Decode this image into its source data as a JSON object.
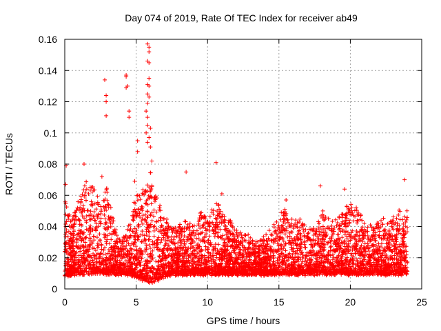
{
  "chart_data": {
    "type": "scatter",
    "title": "Day 074 of 2019, Rate Of TEC Index for receiver ab49",
    "xlabel": "GPS time / hours",
    "ylabel": "ROTI / TECUs",
    "xlim": [
      0,
      25
    ],
    "ylim": [
      0,
      0.16
    ],
    "xticks": [
      0,
      5,
      10,
      15,
      20,
      25
    ],
    "xtick_labels": [
      "0",
      "5",
      "10",
      "15",
      "20",
      "25"
    ],
    "yticks": [
      0,
      0.02,
      0.04,
      0.06,
      0.08,
      0.1,
      0.12,
      0.14,
      0.16
    ],
    "ytick_labels": [
      "0",
      "0.02",
      "0.04",
      "0.06",
      "0.08",
      "0.1",
      "0.12",
      "0.14",
      "0.16"
    ],
    "grid": true,
    "marker": "+",
    "series_color": "#ff0000",
    "envelope": {
      "x": [
        0,
        0.5,
        1,
        1.5,
        2,
        2.5,
        3,
        3.5,
        4,
        4.5,
        5,
        5.5,
        6,
        6.5,
        7,
        7.5,
        8,
        8.5,
        9,
        9.5,
        10,
        10.5,
        11,
        11.5,
        12,
        12.5,
        13,
        13.5,
        14,
        14.5,
        15,
        15.5,
        16,
        16.5,
        17,
        17.5,
        18,
        18.5,
        19,
        19.5,
        20,
        20.5,
        21,
        21.5,
        22,
        22.5,
        23,
        23.5,
        24
      ],
      "upper": [
        0.06,
        0.045,
        0.06,
        0.07,
        0.065,
        0.06,
        0.065,
        0.04,
        0.03,
        0.045,
        0.06,
        0.065,
        0.075,
        0.06,
        0.045,
        0.04,
        0.04,
        0.045,
        0.04,
        0.05,
        0.045,
        0.06,
        0.05,
        0.045,
        0.04,
        0.035,
        0.035,
        0.03,
        0.035,
        0.04,
        0.05,
        0.05,
        0.045,
        0.045,
        0.04,
        0.04,
        0.05,
        0.05,
        0.045,
        0.05,
        0.055,
        0.05,
        0.045,
        0.04,
        0.045,
        0.045,
        0.045,
        0.05,
        0.05
      ],
      "lower": [
        0.008,
        0.01,
        0.01,
        0.01,
        0.01,
        0.01,
        0.01,
        0.01,
        0.01,
        0.01,
        0.008,
        0.006,
        0.005,
        0.006,
        0.008,
        0.01,
        0.01,
        0.01,
        0.01,
        0.01,
        0.01,
        0.01,
        0.01,
        0.01,
        0.01,
        0.01,
        0.01,
        0.01,
        0.01,
        0.01,
        0.01,
        0.01,
        0.01,
        0.01,
        0.01,
        0.01,
        0.01,
        0.01,
        0.01,
        0.01,
        0.01,
        0.01,
        0.01,
        0.01,
        0.01,
        0.01,
        0.01,
        0.01,
        0.01
      ]
    },
    "outliers": [
      {
        "x": 2.8,
        "y": 0.134
      },
      {
        "x": 2.9,
        "y": 0.124
      },
      {
        "x": 2.9,
        "y": 0.12
      },
      {
        "x": 2.9,
        "y": 0.111
      },
      {
        "x": 4.3,
        "y": 0.137
      },
      {
        "x": 4.3,
        "y": 0.136
      },
      {
        "x": 4.4,
        "y": 0.13
      },
      {
        "x": 4.3,
        "y": 0.129
      },
      {
        "x": 4.5,
        "y": 0.114
      },
      {
        "x": 4.5,
        "y": 0.11
      },
      {
        "x": 5.1,
        "y": 0.095
      },
      {
        "x": 5.1,
        "y": 0.088
      },
      {
        "x": 5.8,
        "y": 0.157
      },
      {
        "x": 5.9,
        "y": 0.155
      },
      {
        "x": 5.9,
        "y": 0.152
      },
      {
        "x": 5.8,
        "y": 0.146
      },
      {
        "x": 5.9,
        "y": 0.145
      },
      {
        "x": 5.9,
        "y": 0.135
      },
      {
        "x": 5.8,
        "y": 0.131
      },
      {
        "x": 5.9,
        "y": 0.13
      },
      {
        "x": 5.8,
        "y": 0.125
      },
      {
        "x": 5.9,
        "y": 0.123
      },
      {
        "x": 5.8,
        "y": 0.119
      },
      {
        "x": 5.7,
        "y": 0.114
      },
      {
        "x": 5.8,
        "y": 0.11
      },
      {
        "x": 5.8,
        "y": 0.105
      },
      {
        "x": 6.0,
        "y": 0.103
      },
      {
        "x": 5.7,
        "y": 0.1
      },
      {
        "x": 5.9,
        "y": 0.097
      },
      {
        "x": 5.8,
        "y": 0.094
      },
      {
        "x": 6.0,
        "y": 0.091
      },
      {
        "x": 6.1,
        "y": 0.082
      },
      {
        "x": 0.1,
        "y": 0.079
      },
      {
        "x": 0.05,
        "y": 0.067
      },
      {
        "x": 1.35,
        "y": 0.08
      },
      {
        "x": 2.6,
        "y": 0.072
      },
      {
        "x": 8.5,
        "y": 0.075
      },
      {
        "x": 10.6,
        "y": 0.081
      },
      {
        "x": 23.8,
        "y": 0.07
      },
      {
        "x": 17.9,
        "y": 0.066
      },
      {
        "x": 19.6,
        "y": 0.064
      },
      {
        "x": 4.9,
        "y": 0.069
      },
      {
        "x": 11.0,
        "y": 0.061
      },
      {
        "x": 15.5,
        "y": 0.057
      }
    ]
  }
}
